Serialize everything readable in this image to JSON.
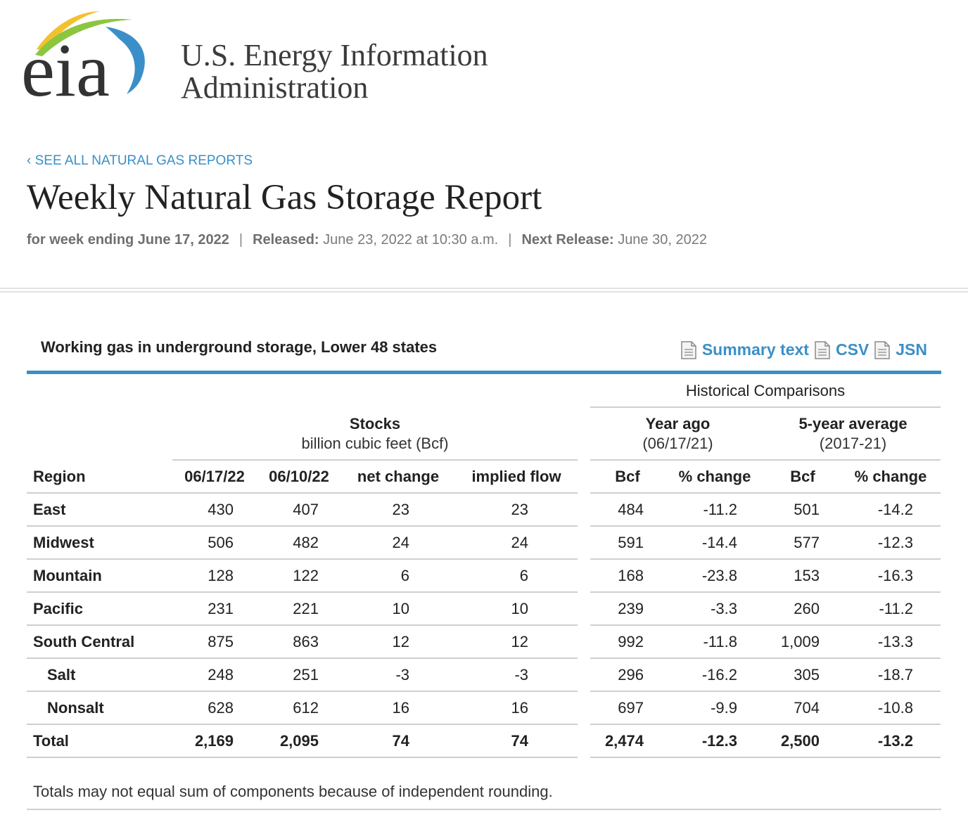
{
  "brand": {
    "logo_text": "eia",
    "agency_line1": "U.S. Energy Information",
    "agency_line2": "Administration",
    "colors": {
      "green": "#8cc63f",
      "blue": "#3a8fc8",
      "yellow": "#f2c12e",
      "dark": "#333333"
    }
  },
  "nav": {
    "back_link": "‹ SEE ALL NATURAL GAS REPORTS"
  },
  "header": {
    "title": "Weekly Natural Gas Storage Report",
    "week_label": "for week ending June 17, 2022",
    "separator": "|",
    "released_label": "Released:",
    "released_value": "June 23, 2022 at 10:30 a.m.",
    "next_label": "Next Release:",
    "next_value": "June 30, 2022"
  },
  "table": {
    "title": "Working gas in underground storage, Lower 48 states",
    "downloads": [
      {
        "label": "Summary text",
        "icon": "document-icon"
      },
      {
        "label": "CSV",
        "icon": "document-icon"
      },
      {
        "label": "JSN",
        "icon": "document-icon"
      }
    ],
    "group_headers": {
      "historical": "Historical Comparisons",
      "stocks": "Stocks",
      "stocks_unit": "billion cubic feet (Bcf)",
      "year_ago": "Year ago",
      "year_ago_date": "(06/17/21)",
      "five_year": "5-year average",
      "five_year_range": "(2017-21)"
    },
    "columns": [
      "Region",
      "06/17/22",
      "06/10/22",
      "net change",
      "implied flow",
      "Bcf",
      "% change",
      "Bcf",
      "% change"
    ],
    "rows": [
      {
        "region": "East",
        "indent": false,
        "total": false,
        "values": [
          "430",
          "407",
          "23",
          "23",
          "484",
          "-11.2",
          "501",
          "-14.2"
        ]
      },
      {
        "region": "Midwest",
        "indent": false,
        "total": false,
        "values": [
          "506",
          "482",
          "24",
          "24",
          "591",
          "-14.4",
          "577",
          "-12.3"
        ]
      },
      {
        "region": "Mountain",
        "indent": false,
        "total": false,
        "values": [
          "128",
          "122",
          "6",
          "6",
          "168",
          "-23.8",
          "153",
          "-16.3"
        ]
      },
      {
        "region": "Pacific",
        "indent": false,
        "total": false,
        "values": [
          "231",
          "221",
          "10",
          "10",
          "239",
          "-3.3",
          "260",
          "-11.2"
        ]
      },
      {
        "region": "South Central",
        "indent": false,
        "total": false,
        "values": [
          "875",
          "863",
          "12",
          "12",
          "992",
          "-11.8",
          "1,009",
          "-13.3"
        ]
      },
      {
        "region": "Salt",
        "indent": true,
        "total": false,
        "values": [
          "248",
          "251",
          "-3",
          "-3",
          "296",
          "-16.2",
          "305",
          "-18.7"
        ]
      },
      {
        "region": "Nonsalt",
        "indent": true,
        "total": false,
        "values": [
          "628",
          "612",
          "16",
          "16",
          "697",
          "-9.9",
          "704",
          "-10.8"
        ]
      },
      {
        "region": "Total",
        "indent": false,
        "total": true,
        "values": [
          "2,169",
          "2,095",
          "74",
          "74",
          "2,474",
          "-12.3",
          "2,500",
          "-13.2"
        ]
      }
    ],
    "footnote": "Totals may not equal sum of components because of independent rounding."
  }
}
